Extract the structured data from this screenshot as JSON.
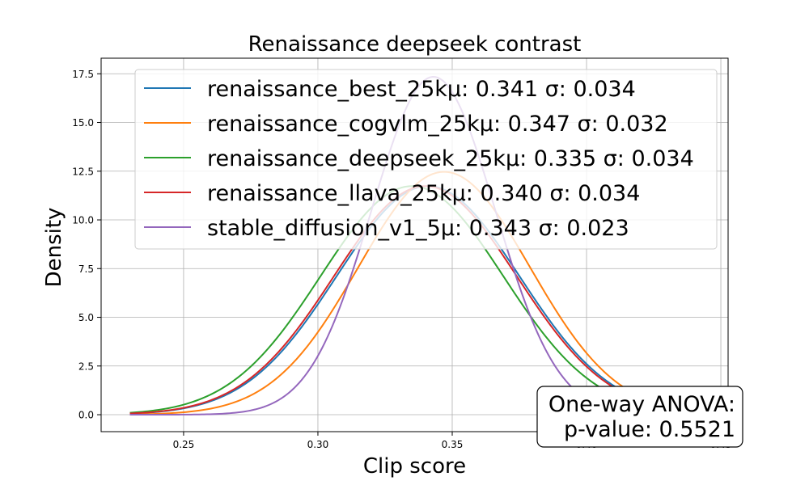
{
  "chart_data": {
    "type": "line",
    "title": "Renaissance deepseek contrast",
    "xlabel": "Clip score",
    "ylabel": "Density",
    "xlim": [
      0.2193,
      0.4527
    ],
    "ylim": [
      -0.87,
      18.3
    ],
    "xticks": [
      0.25,
      0.3,
      0.35,
      0.4,
      0.45
    ],
    "xtick_labels": [
      "0.25",
      "0.30",
      "0.35",
      "0.40",
      "0.45"
    ],
    "yticks": [
      0.0,
      2.5,
      5.0,
      7.5,
      10.0,
      12.5,
      15.0,
      17.5
    ],
    "ytick_labels": [
      "0.0",
      "2.5",
      "5.0",
      "7.5",
      "10.0",
      "12.5",
      "15.0",
      "17.5"
    ],
    "grid": true,
    "legend_position": "upper center",
    "x_range": [
      0.23,
      0.44
    ],
    "series": [
      {
        "name": "renaissance_best_25k",
        "label": "renaissance_best_25kμ: 0.341 σ: 0.034",
        "mu": 0.341,
        "sigma": 0.034,
        "color": "#1f77b4"
      },
      {
        "name": "renaissance_cogvlm_25k",
        "label": "renaissance_cogvlm_25kμ: 0.347 σ: 0.032",
        "mu": 0.347,
        "sigma": 0.032,
        "color": "#ff7f0e"
      },
      {
        "name": "renaissance_deepseek_25k",
        "label": "renaissance_deepseek_25kμ: 0.335 σ: 0.034",
        "mu": 0.335,
        "sigma": 0.034,
        "color": "#2ca02c"
      },
      {
        "name": "renaissance_llava_25k",
        "label": "renaissance_llava_25kμ: 0.340 σ: 0.034",
        "mu": 0.34,
        "sigma": 0.034,
        "color": "#d62728"
      },
      {
        "name": "stable_diffusion_v1_5",
        "label": "stable_diffusion_v1_5μ: 0.343 σ: 0.023",
        "mu": 0.343,
        "sigma": 0.023,
        "color": "#9467bd"
      }
    ],
    "annotation": {
      "line1": "One-way ANOVA:",
      "line2": "p-value: 0.5521"
    }
  }
}
